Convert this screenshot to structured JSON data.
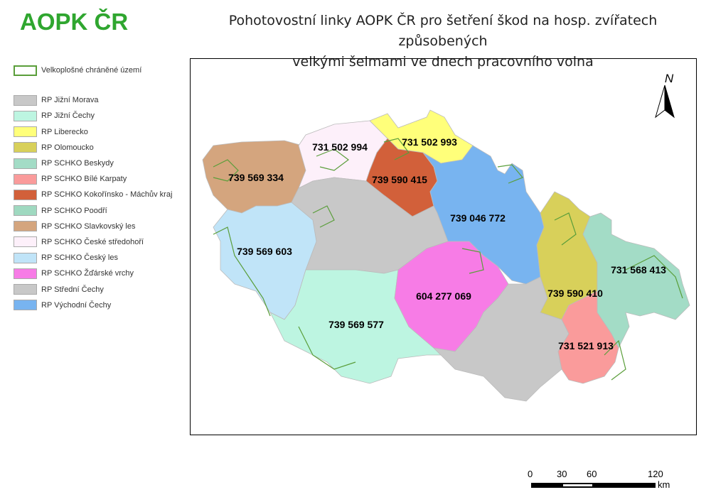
{
  "logo": "AOPK ČR",
  "title_line1": "Pohotovostní linky AOPK ČR pro šetření škod na hosp. zvířatech způsobených",
  "title_line2": "velkými šelmami ve dnech pracovního volna",
  "legend": {
    "protected_area": {
      "label": "Velkoplošné chráněné území",
      "color": "#5a9e3a"
    },
    "items": [
      {
        "label": "RP Jižní Morava",
        "color": "#c8c8c8"
      },
      {
        "label": "RP Jižní Čechy",
        "color": "#bdf5e1"
      },
      {
        "label": "RP Liberecko",
        "color": "#ffff7a"
      },
      {
        "label": "RP Olomoucko",
        "color": "#d8d05a"
      },
      {
        "label": "RP SCHKO Beskydy",
        "color": "#a3dcc6"
      },
      {
        "label": "RP SCHKO Bílé Karpaty",
        "color": "#fa9b9b"
      },
      {
        "label": "RP SCHKO Kokořínsko - Máchův kraj",
        "color": "#d2603a"
      },
      {
        "label": "RP SCHKO Poodří",
        "color": "#9fd9c0"
      },
      {
        "label": "RP SCHKO Slavkovský les",
        "color": "#d4a57e"
      },
      {
        "label": "RP SCHKO České středohoří",
        "color": "#fdf0fa"
      },
      {
        "label": "RP SCHKO Český les",
        "color": "#c0e4f8"
      },
      {
        "label": "RP SCHKO Žďárské vrchy",
        "color": "#f77ce6"
      },
      {
        "label": "RP Střední Čechy",
        "color": "#c8c8c8"
      },
      {
        "label": "RP Východní Čechy",
        "color": "#78b4f0"
      }
    ]
  },
  "regions": [
    {
      "name": "Slavkovský les",
      "phone": "739 569 334",
      "color": "#d4a57e"
    },
    {
      "name": "České středohoří",
      "phone": "731 502 994",
      "color": "#fdf0fa"
    },
    {
      "name": "Liberecko",
      "phone": "731 502 993",
      "color": "#ffff7a"
    },
    {
      "name": "Kokořínsko",
      "phone": "739 590 415",
      "color": "#d2603a"
    },
    {
      "name": "Východní Čechy",
      "phone": "739 046 772",
      "color": "#78b4f0"
    },
    {
      "name": "Střední Čechy",
      "phone": "",
      "color": "#c8c8c8"
    },
    {
      "name": "Český les",
      "phone": "739 569 603",
      "color": "#c0e4f8"
    },
    {
      "name": "Jižní Čechy",
      "phone": "739 569 577",
      "color": "#bdf5e1"
    },
    {
      "name": "Žďárské vrchy",
      "phone": "604 277 069",
      "color": "#f77ce6"
    },
    {
      "name": "Jižní Morava",
      "phone": "",
      "color": "#c8c8c8"
    },
    {
      "name": "Olomoucko",
      "phone": "739 590 410",
      "color": "#d8d05a"
    },
    {
      "name": "Beskydy",
      "phone": "731 568 413",
      "color": "#a3dcc6"
    },
    {
      "name": "Bílé Karpaty",
      "phone": "731 521 913",
      "color": "#fa9b9b"
    }
  ],
  "north": "N",
  "scale": {
    "ticks": [
      "0",
      "30",
      "60",
      "120"
    ],
    "unit": "km"
  }
}
